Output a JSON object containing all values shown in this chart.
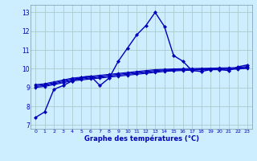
{
  "xlabel": "Graphe des températures (°C)",
  "bg_color": "#cceeff",
  "grid_color": "#aacccc",
  "line_color": "#0000bb",
  "ylim": [
    6.8,
    13.4
  ],
  "xlim": [
    -0.5,
    23.5
  ],
  "yticks": [
    7,
    8,
    9,
    10,
    11,
    12,
    13
  ],
  "xtick_labels": [
    "0",
    "1",
    "2",
    "3",
    "4",
    "5",
    "6",
    "7",
    "8",
    "9",
    "10",
    "11",
    "12",
    "13",
    "14",
    "15",
    "16",
    "17",
    "18",
    "19",
    "20",
    "21",
    "22",
    "23"
  ],
  "series": [
    [
      7.4,
      7.7,
      8.9,
      9.1,
      9.35,
      9.55,
      9.6,
      9.1,
      9.5,
      10.4,
      11.1,
      11.8,
      12.3,
      13.0,
      12.25,
      10.7,
      10.4,
      9.9,
      9.85,
      9.95,
      9.95,
      9.9,
      10.1,
      10.2
    ],
    [
      9.0,
      9.05,
      9.15,
      9.25,
      9.35,
      9.4,
      9.45,
      9.5,
      9.55,
      9.6,
      9.65,
      9.7,
      9.75,
      9.8,
      9.85,
      9.88,
      9.9,
      9.92,
      9.94,
      9.96,
      9.97,
      9.97,
      9.98,
      10.02
    ],
    [
      9.05,
      9.1,
      9.2,
      9.3,
      9.4,
      9.45,
      9.5,
      9.55,
      9.6,
      9.65,
      9.7,
      9.75,
      9.8,
      9.85,
      9.9,
      9.92,
      9.93,
      9.94,
      9.96,
      9.97,
      9.98,
      9.98,
      9.99,
      10.05
    ],
    [
      9.1,
      9.15,
      9.25,
      9.35,
      9.45,
      9.5,
      9.55,
      9.6,
      9.65,
      9.7,
      9.75,
      9.8,
      9.85,
      9.9,
      9.93,
      9.95,
      9.96,
      9.97,
      9.98,
      9.99,
      10.0,
      10.0,
      10.02,
      10.08
    ],
    [
      9.15,
      9.2,
      9.3,
      9.4,
      9.5,
      9.55,
      9.6,
      9.65,
      9.7,
      9.75,
      9.8,
      9.85,
      9.9,
      9.95,
      9.97,
      9.99,
      10.0,
      10.01,
      10.02,
      10.03,
      10.04,
      10.05,
      10.06,
      10.12
    ]
  ],
  "marker": "D",
  "main_markersize": 2.2,
  "flat_markersize": 1.8,
  "main_linewidth": 1.0,
  "flat_linewidth": 0.8
}
